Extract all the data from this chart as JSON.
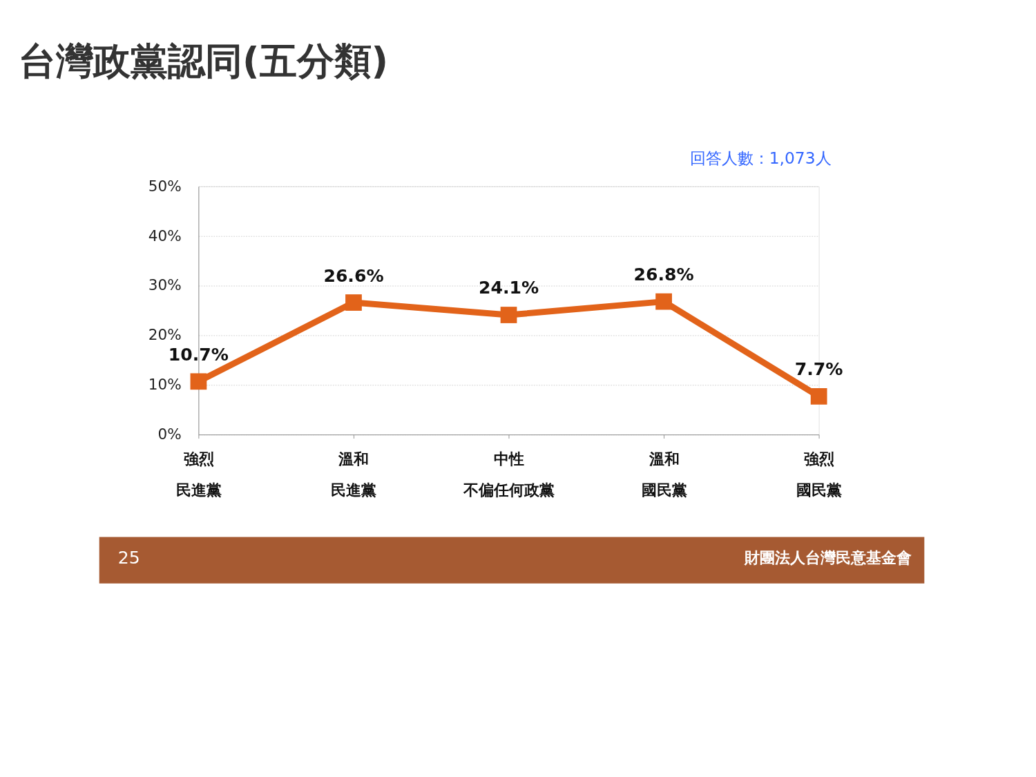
{
  "chart_data": {
    "type": "line",
    "title": "台灣政黨認同(五分類)",
    "categories": [
      "強烈民進黨",
      "溫和民進黨",
      "中性不偏任何政黨",
      "溫和國民黨",
      "強烈國民黨"
    ],
    "series": [
      {
        "color": "#e2631a",
        "values": [
          10.7,
          26.6,
          24.1,
          26.8,
          7.7
        ]
      }
    ],
    "value_labels": [
      "10.7%",
      "26.6%",
      "24.1%",
      "26.8%",
      "7.7%"
    ],
    "ylim": [
      0,
      50
    ],
    "yticks": [
      {
        "value": 0,
        "label": "0%"
      },
      {
        "value": 10,
        "label": "10%"
      },
      {
        "value": 20,
        "label": "20%"
      },
      {
        "value": 30,
        "label": "30%"
      },
      {
        "value": 40,
        "label": "40%"
      },
      {
        "value": 50,
        "label": "50%"
      }
    ],
    "grid": "y",
    "marker": "square",
    "line_style": "solid",
    "annotations": [
      "回答人數：1,073人",
      "25",
      "財團法人台灣民意基金會"
    ]
  }
}
